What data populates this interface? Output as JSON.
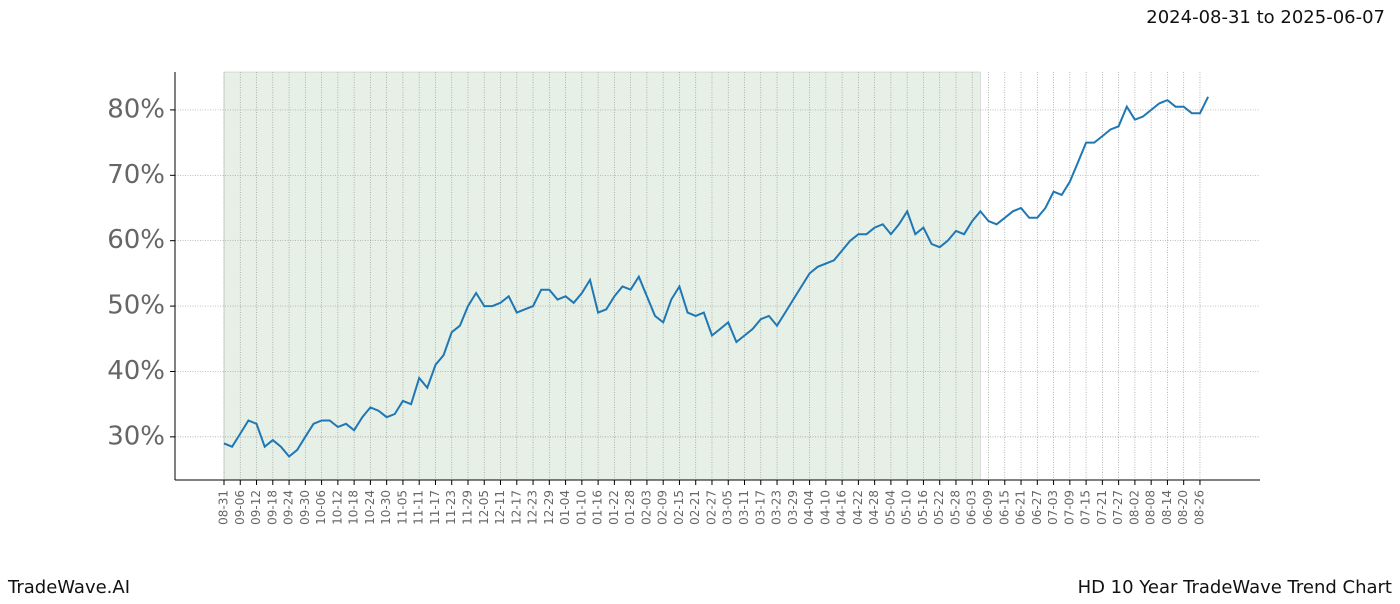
{
  "chart_data": {
    "type": "line",
    "date_range": "2024-08-31 to 2025-06-07",
    "brand": "TradeWave.AI",
    "title": "HD 10 Year TradeWave Trend Chart",
    "categories": [
      "08-31",
      null,
      "09-06",
      null,
      "09-12",
      null,
      "09-18",
      null,
      "09-24",
      null,
      "09-30",
      null,
      "10-06",
      null,
      "10-12",
      null,
      "10-18",
      null,
      "10-24",
      null,
      "10-30",
      null,
      "11-05",
      null,
      "11-11",
      null,
      "11-17",
      null,
      "11-23",
      null,
      "11-29",
      null,
      "12-05",
      null,
      "12-11",
      null,
      "12-17",
      null,
      "12-23",
      null,
      "12-29",
      null,
      "01-04",
      null,
      "01-10",
      null,
      "01-16",
      null,
      "01-22",
      null,
      "01-28",
      null,
      "02-03",
      null,
      "02-09",
      null,
      "02-15",
      null,
      "02-21",
      null,
      "02-27",
      null,
      "03-05",
      null,
      "03-11",
      null,
      "03-17",
      null,
      "03-23",
      null,
      "03-29",
      null,
      "04-04",
      null,
      "04-10",
      null,
      "04-16",
      null,
      "04-22",
      null,
      "04-28",
      null,
      "05-04",
      null,
      "05-10",
      null,
      "05-16",
      null,
      "05-22",
      null,
      "05-28",
      null,
      "06-03",
      null,
      "06-09",
      null,
      "06-15",
      null,
      "06-21",
      null,
      "06-27",
      null,
      "07-03",
      null,
      "07-09",
      null,
      "07-15",
      null,
      "07-21",
      null,
      "07-27",
      null,
      "08-02",
      null,
      "08-08",
      null,
      "08-14",
      null,
      "08-20",
      null,
      "08-26",
      null
    ],
    "series": [
      {
        "color": "#1f77b4",
        "values": [
          29,
          28.5,
          30.5,
          32.5,
          32,
          28.5,
          29.5,
          28.5,
          27,
          28,
          30,
          32,
          32.5,
          32.5,
          31.5,
          32,
          31,
          33,
          34.5,
          34,
          33,
          33.5,
          35.5,
          35,
          39,
          37.5,
          41,
          42.5,
          46,
          47,
          50,
          52,
          50,
          50,
          50.5,
          51.5,
          49,
          49.5,
          50,
          52.5,
          52.5,
          51,
          51.5,
          50.5,
          52,
          54,
          49,
          49.5,
          51.5,
          53,
          52.5,
          54.5,
          51.5,
          48.5,
          47.5,
          51,
          53,
          49,
          48.5,
          49,
          45.5,
          46.5,
          47.5,
          44.5,
          45.5,
          46.5,
          48,
          48.5,
          47,
          49,
          51,
          53,
          55,
          56,
          56.5,
          57,
          58.5,
          60,
          61,
          61,
          62,
          62.5,
          61,
          62.5,
          64.5,
          61,
          62,
          59.5,
          59,
          60,
          61.5,
          61,
          63,
          64.5,
          63,
          62.5,
          63.5,
          64.5,
          65,
          63.5,
          63.5,
          65,
          67.5,
          67,
          69,
          72,
          75,
          75,
          76,
          77,
          77.5,
          80.5,
          78.5,
          79,
          80,
          81,
          81.5,
          80.5,
          80.5,
          79.5,
          79.5,
          82
        ]
      }
    ],
    "shade": {
      "from": 0,
      "to": 93,
      "color": "#e6f0e6"
    },
    "ylim": [
      23.4,
      85.8
    ],
    "yticks": [
      {
        "value": 30,
        "label": "30%"
      },
      {
        "value": 40,
        "label": "40%"
      },
      {
        "value": 50,
        "label": "50%"
      },
      {
        "value": 60,
        "label": "60%"
      },
      {
        "value": 70,
        "label": "70%"
      },
      {
        "value": 80,
        "label": "80%"
      }
    ],
    "grid": true
  }
}
